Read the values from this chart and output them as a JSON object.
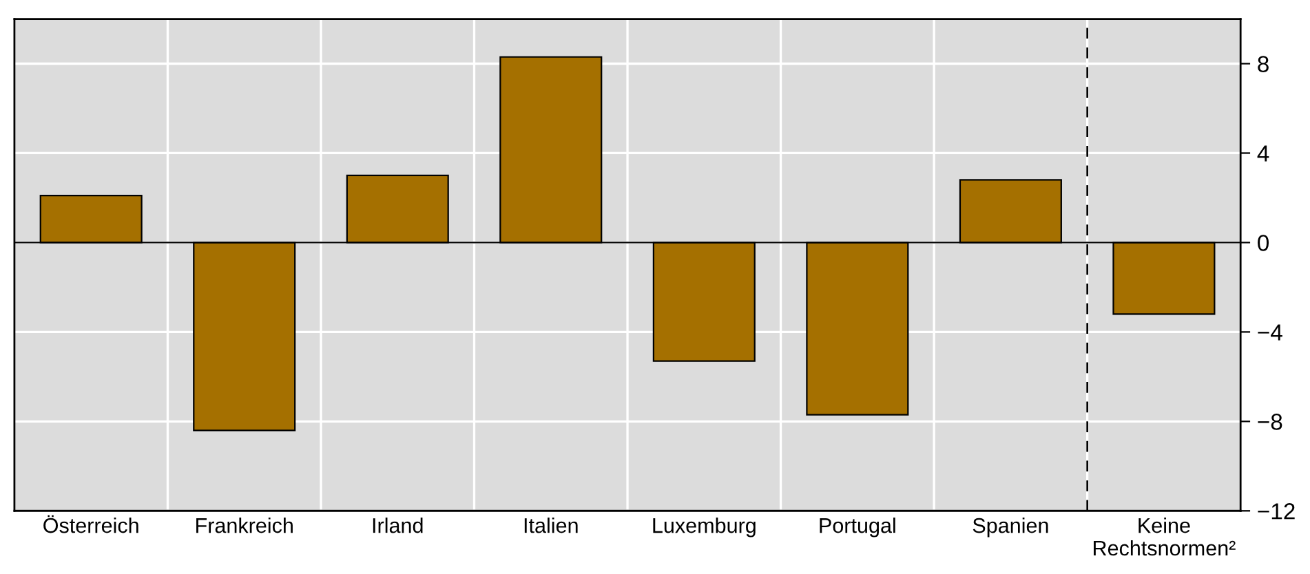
{
  "chart_data": {
    "type": "bar",
    "categories": [
      "Österreich",
      "Frankreich",
      "Irland",
      "Italien",
      "Luxemburg",
      "Portugal",
      "Spanien",
      "Keine\nRechtsnormen²"
    ],
    "values": [
      2.1,
      -8.4,
      3.0,
      8.3,
      -5.3,
      -7.7,
      2.8,
      -3.2
    ],
    "color": "#a57000",
    "ylim": [
      -12,
      10
    ],
    "yticks": [
      {
        "value": -12,
        "label": "−12"
      },
      {
        "value": -8,
        "label": "−8"
      },
      {
        "value": -4,
        "label": "−4"
      },
      0,
      4,
      8
    ],
    "grid": true
  }
}
